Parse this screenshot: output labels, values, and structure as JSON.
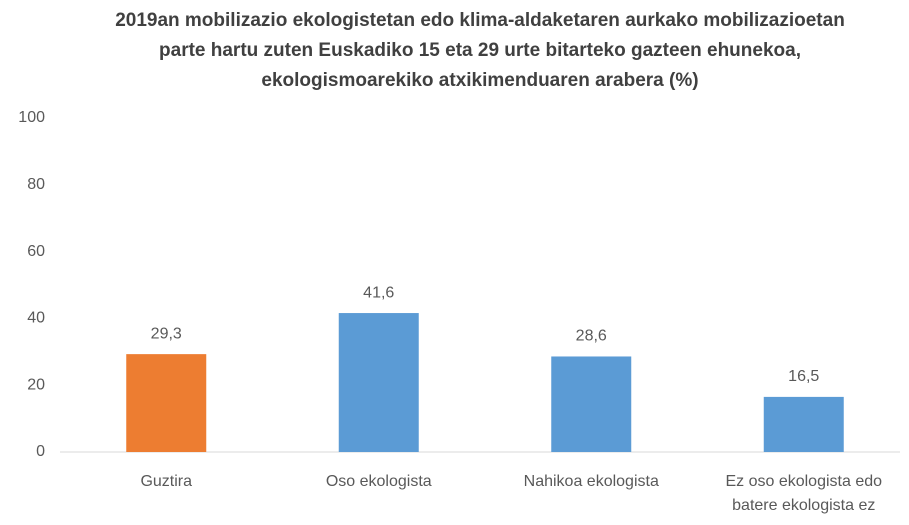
{
  "chart_data": {
    "type": "bar",
    "title": "2019an mobilizazio ekologistetan edo klima-aldaketaren aurkako mobilizazioetan parte hartu zuten Euskadiko 15 eta 29 urte bitarteko gazteen ehunekoa, ekologismoarekiko atxikimenduaren arabera (%)",
    "categories": [
      "Guztira",
      "Oso ekologista",
      "Nahikoa ekologista",
      "Ez oso ekologista edo batere ekologista ez"
    ],
    "values": [
      29.3,
      41.6,
      28.6,
      16.5
    ],
    "value_labels": [
      "29,3",
      "41,6",
      "28,6",
      "16,5"
    ],
    "colors": [
      "#ED7D31",
      "#5B9BD5",
      "#5B9BD5",
      "#5B9BD5"
    ],
    "ylim": [
      0,
      100
    ],
    "yticks": [
      0,
      20,
      40,
      60,
      80,
      100
    ],
    "grid": false
  }
}
